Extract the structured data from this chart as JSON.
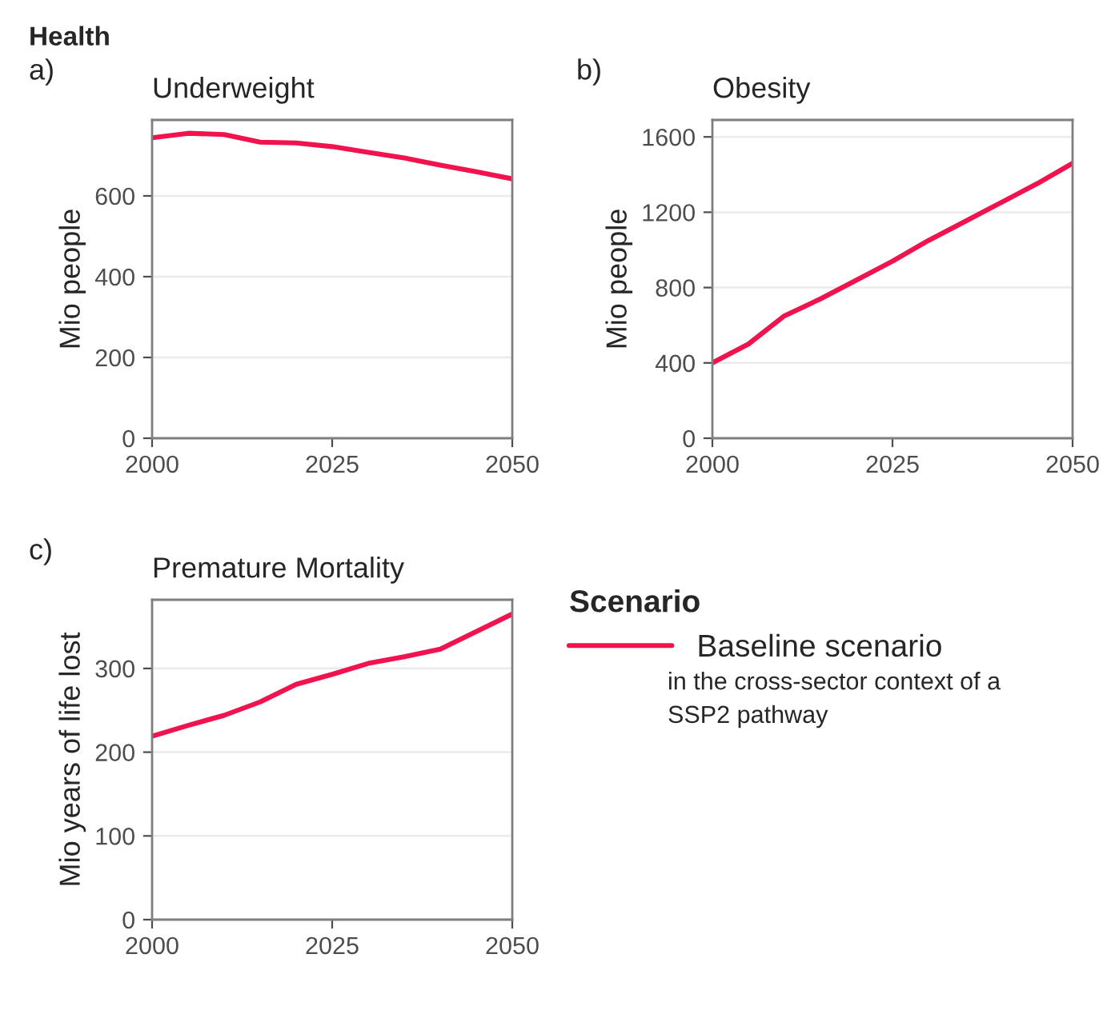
{
  "chart_data": [
    {
      "type": "line",
      "title": "Underweight",
      "ylabel": "Mio people",
      "annotations": [
        "Health",
        "a)"
      ],
      "x": [
        2000,
        2005,
        2010,
        2015,
        2020,
        2025,
        2030,
        2035,
        2040,
        2045,
        2050
      ],
      "series": [
        {
          "color": "#f0134d",
          "values": [
            744,
            755,
            752,
            733,
            731,
            722,
            708,
            694,
            676,
            660,
            642
          ]
        }
      ],
      "xlim": [
        2000,
        2050
      ],
      "xticks": [
        2000,
        2025,
        2050
      ],
      "ylim": [
        0,
        788
      ],
      "yticks": [
        0,
        200,
        400,
        600
      ],
      "grid": "y",
      "legend": false
    },
    {
      "type": "line",
      "title": "Obesity",
      "ylabel": "Mio people",
      "annotations": [
        "b)"
      ],
      "x": [
        2000,
        2005,
        2010,
        2015,
        2020,
        2025,
        2030,
        2035,
        2040,
        2045,
        2050
      ],
      "series": [
        {
          "color": "#f0134d",
          "values": [
            400,
            500,
            650,
            740,
            840,
            940,
            1050,
            1150,
            1250,
            1350,
            1460
          ]
        }
      ],
      "xlim": [
        2000,
        2050
      ],
      "xticks": [
        2000,
        2025,
        2050
      ],
      "ylim": [
        0,
        1690
      ],
      "yticks": [
        0,
        400,
        800,
        1200,
        1600
      ],
      "grid": "y",
      "legend": false
    },
    {
      "type": "line",
      "title": "Premature Mortality",
      "ylabel": "Mio years of life lost",
      "annotations": [
        "c)",
        "in the cross-sector context of a\nSSP2 pathway"
      ],
      "legend_title": "Scenario",
      "x": [
        2000,
        2005,
        2010,
        2015,
        2020,
        2025,
        2030,
        2035,
        2040,
        2045,
        2050
      ],
      "series": [
        {
          "name": "Baseline scenario",
          "color": "#f0134d",
          "values": [
            219,
            232,
            244,
            260,
            281,
            293,
            306,
            314,
            323,
            344,
            365
          ]
        }
      ],
      "xlim": [
        2000,
        2050
      ],
      "xticks": [
        2000,
        2025,
        2050
      ],
      "ylim": [
        0,
        382
      ],
      "yticks": [
        0,
        100,
        200,
        300
      ],
      "grid": "y",
      "legend": "right"
    }
  ]
}
